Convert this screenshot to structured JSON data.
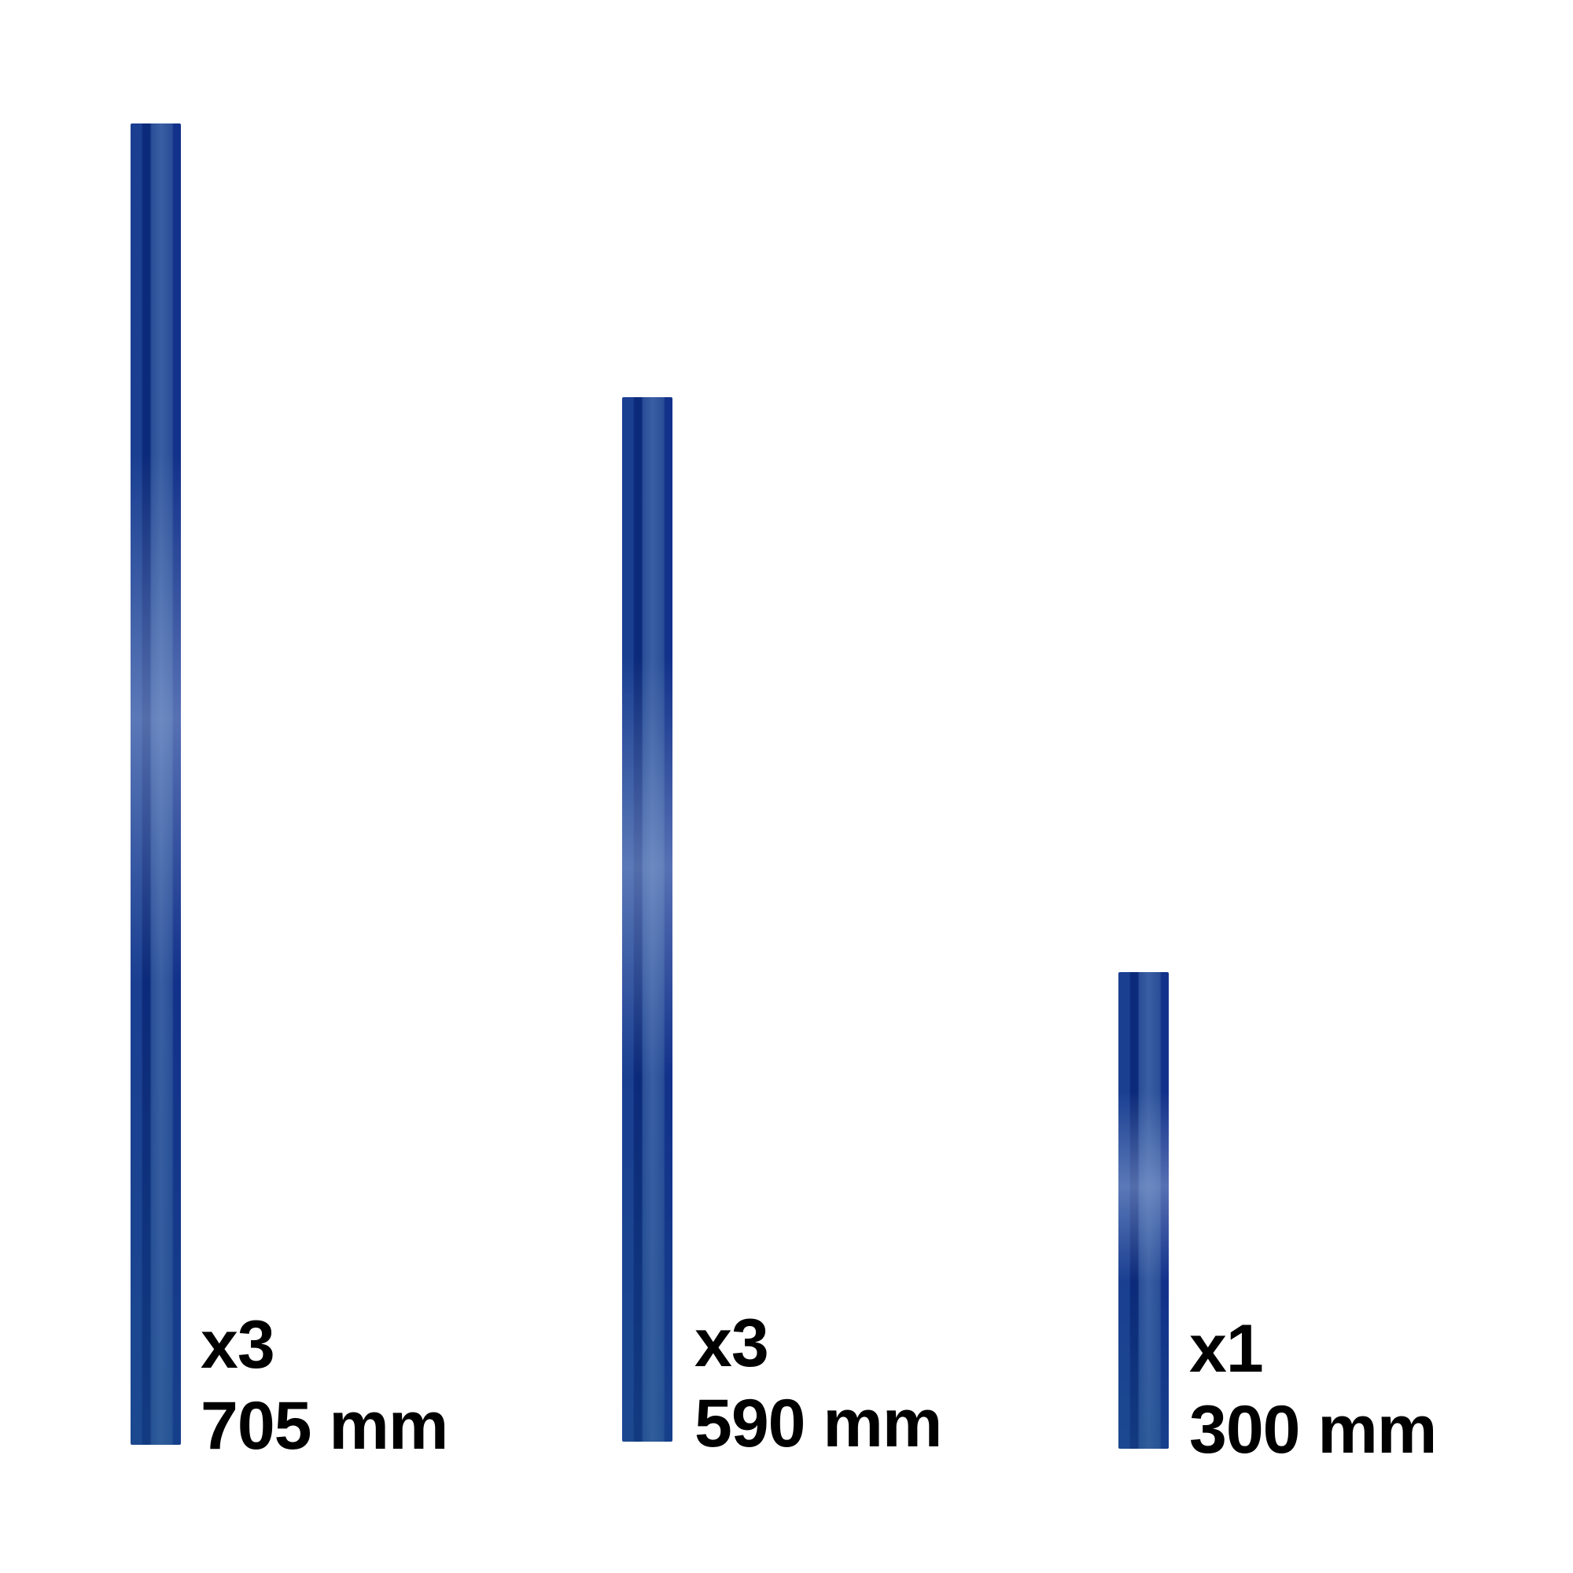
{
  "items": [
    {
      "quantity": "x3",
      "length": "705 mm"
    },
    {
      "quantity": "x3",
      "length": "590 mm"
    },
    {
      "quantity": "x1",
      "length": "300 mm"
    }
  ],
  "colors": {
    "rod": "#1a3f91",
    "text": "#000000",
    "background": "#ffffff"
  }
}
